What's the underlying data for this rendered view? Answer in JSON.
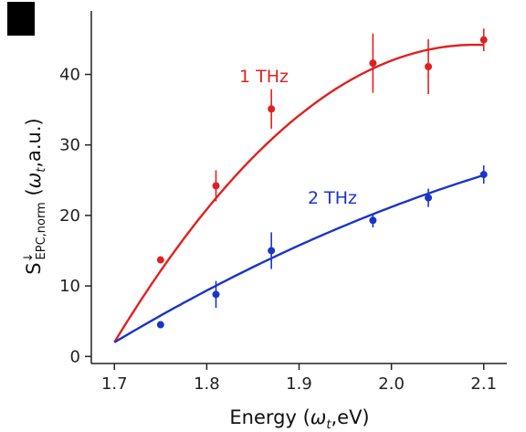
{
  "chart_data": {
    "type": "scatter",
    "xlabel": "Energy (ω_t,eV)",
    "ylabel": "S^↓_EPC,norm (ω_t,a.u.)",
    "xlim": [
      1.675,
      2.125
    ],
    "ylim": [
      -1,
      49
    ],
    "xticks": [
      "1.7",
      "1.8",
      "1.9",
      "2.0",
      "2.1"
    ],
    "yticks": [
      "0",
      "10",
      "20",
      "30",
      "40"
    ],
    "grid": false,
    "series": [
      {
        "name": "1 THz",
        "color": "#e02020",
        "points": [
          {
            "x": 1.75,
            "y": 13.7,
            "err": 0
          },
          {
            "x": 1.81,
            "y": 24.2,
            "err": 2.2
          },
          {
            "x": 1.87,
            "y": 35.1,
            "err": 2.8
          },
          {
            "x": 1.98,
            "y": 41.6,
            "err": 4.2
          },
          {
            "x": 2.04,
            "y": 41.1,
            "err": 3.9
          },
          {
            "x": 2.1,
            "y": 44.9,
            "err": 1.6
          }
        ],
        "fit": {
          "x_start": 1.7,
          "x_end": 2.1,
          "y_start": 2.0,
          "y_peak": 44.2,
          "x_peak": 2.09
        }
      },
      {
        "name": "2 THz",
        "color": "#1a35c8",
        "points": [
          {
            "x": 1.75,
            "y": 4.5,
            "err": 0
          },
          {
            "x": 1.81,
            "y": 8.8,
            "err": 1.9
          },
          {
            "x": 1.87,
            "y": 15.0,
            "err": 2.6
          },
          {
            "x": 1.98,
            "y": 19.3,
            "err": 1.0
          },
          {
            "x": 2.04,
            "y": 22.5,
            "err": 1.3
          },
          {
            "x": 2.1,
            "y": 25.8,
            "err": 1.3
          }
        ],
        "fit": {
          "x_start": 1.7,
          "x_end": 2.1,
          "y_start": 2.0,
          "y_end": 25.7
        }
      }
    ]
  }
}
